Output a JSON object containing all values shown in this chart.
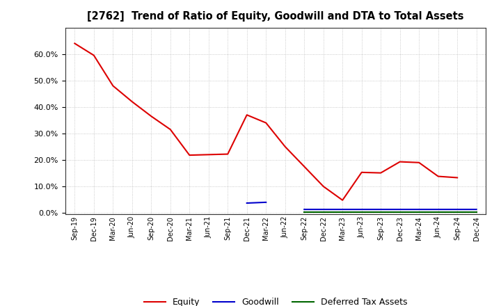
{
  "title": "[2762]  Trend of Ratio of Equity, Goodwill and DTA to Total Assets",
  "x_labels": [
    "Sep-19",
    "Dec-19",
    "Mar-20",
    "Jun-20",
    "Sep-20",
    "Dec-20",
    "Mar-21",
    "Jun-21",
    "Sep-21",
    "Dec-21",
    "Mar-22",
    "Jun-22",
    "Sep-22",
    "Dec-22",
    "Mar-23",
    "Jun-23",
    "Sep-23",
    "Dec-23",
    "Mar-24",
    "Jun-24",
    "Sep-24",
    "Dec-24"
  ],
  "equity": [
    0.64,
    0.595,
    0.48,
    0.42,
    0.365,
    0.315,
    0.218,
    0.22,
    0.222,
    0.37,
    0.34,
    0.25,
    0.175,
    0.1,
    0.048,
    0.153,
    0.151,
    0.193,
    0.19,
    0.138,
    0.133,
    null
  ],
  "goodwill": [
    null,
    null,
    null,
    null,
    null,
    null,
    null,
    null,
    null,
    0.037,
    0.04,
    null,
    0.013,
    0.013,
    0.013,
    0.013,
    0.013,
    0.013,
    0.013,
    0.013,
    0.013,
    0.013
  ],
  "dta": [
    null,
    null,
    null,
    null,
    null,
    null,
    null,
    null,
    null,
    null,
    null,
    null,
    0.002,
    0.002,
    0.002,
    0.002,
    0.002,
    0.002,
    0.002,
    0.002,
    0.002,
    0.002
  ],
  "equity_color": "#dd0000",
  "goodwill_color": "#0000cc",
  "dta_color": "#006600",
  "background_color": "#ffffff",
  "grid_color": "#aaaaaa",
  "ylim": [
    -0.005,
    0.7
  ],
  "yticks": [
    0.0,
    0.1,
    0.2,
    0.3,
    0.4,
    0.5,
    0.6
  ]
}
